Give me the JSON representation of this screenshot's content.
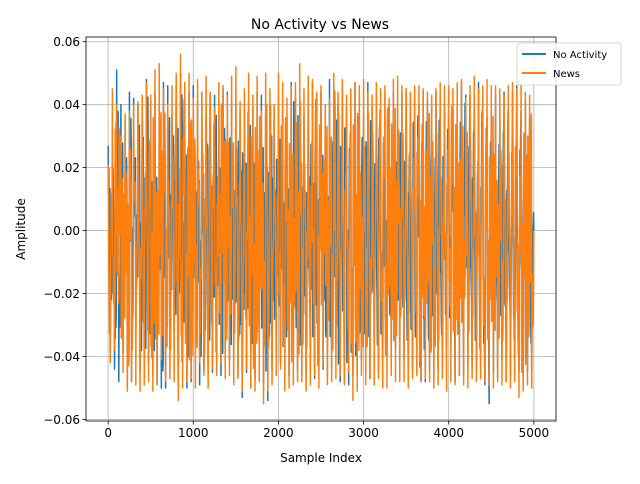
{
  "chart_data": {
    "type": "line",
    "title": "No Activity vs News",
    "xlabel": "Sample Index",
    "ylabel": "Amplitude",
    "xlim": [
      -260,
      5260
    ],
    "ylim": [
      -0.0605,
      0.0615
    ],
    "x_ticks": [
      0,
      1000,
      2000,
      3000,
      4000,
      5000
    ],
    "x_tick_labels": [
      "0",
      "1000",
      "2000",
      "3000",
      "4000",
      "5000"
    ],
    "y_ticks": [
      -0.06,
      -0.04,
      -0.02,
      0.0,
      0.02,
      0.04,
      0.06
    ],
    "y_tick_labels": [
      "−0.06",
      "−0.04",
      "−0.02",
      "0.00",
      "0.02",
      "0.04",
      "0.06"
    ],
    "grid": true,
    "legend_position": "top-right",
    "n_samples": 5000,
    "series": [
      {
        "name": "No Activity",
        "color": "#1f77b4",
        "x_start": 0,
        "x_step": 50,
        "envelope": [
          [
            0.027,
            -0.036
          ],
          [
            0.028,
            -0.044
          ],
          [
            0.051,
            -0.048
          ],
          [
            0.04,
            -0.039
          ],
          [
            0.035,
            -0.05
          ],
          [
            0.044,
            -0.048
          ],
          [
            0.042,
            -0.032
          ],
          [
            0.04,
            -0.045
          ],
          [
            0.036,
            -0.047
          ],
          [
            0.048,
            -0.042
          ],
          [
            0.041,
            -0.046
          ],
          [
            0.044,
            -0.049
          ],
          [
            0.038,
            -0.05
          ],
          [
            0.047,
            -0.05
          ],
          [
            0.046,
            -0.035
          ],
          [
            0.037,
            -0.032
          ],
          [
            0.048,
            -0.043
          ],
          [
            0.05,
            -0.039
          ],
          [
            0.029,
            -0.05
          ],
          [
            0.044,
            -0.048
          ],
          [
            0.046,
            -0.035
          ],
          [
            0.041,
            -0.049
          ],
          [
            0.044,
            -0.044
          ],
          [
            0.037,
            -0.044
          ],
          [
            0.04,
            -0.045
          ],
          [
            0.043,
            -0.036
          ],
          [
            0.037,
            -0.046
          ],
          [
            0.045,
            -0.038
          ],
          [
            0.044,
            -0.041
          ],
          [
            0.041,
            -0.047
          ],
          [
            0.041,
            -0.046
          ],
          [
            0.037,
            -0.053
          ],
          [
            0.04,
            -0.045
          ],
          [
            0.041,
            -0.049
          ],
          [
            0.039,
            -0.047
          ],
          [
            0.044,
            -0.04
          ],
          [
            0.043,
            -0.049
          ],
          [
            0.037,
            -0.054
          ],
          [
            0.04,
            -0.044
          ],
          [
            0.039,
            -0.046
          ],
          [
            0.043,
            -0.042
          ],
          [
            0.041,
            -0.046
          ],
          [
            0.036,
            -0.046
          ],
          [
            0.047,
            -0.041
          ],
          [
            0.042,
            -0.045
          ],
          [
            0.031,
            -0.046
          ],
          [
            0.036,
            -0.047
          ],
          [
            0.042,
            -0.039
          ],
          [
            0.047,
            -0.047
          ],
          [
            0.04,
            -0.042
          ],
          [
            0.044,
            -0.044
          ],
          [
            0.04,
            -0.046
          ],
          [
            0.048,
            -0.044
          ],
          [
            0.044,
            -0.036
          ],
          [
            0.04,
            -0.048
          ],
          [
            0.044,
            -0.048
          ],
          [
            0.039,
            -0.049
          ],
          [
            0.041,
            -0.046
          ],
          [
            0.047,
            -0.046
          ],
          [
            0.042,
            -0.041
          ],
          [
            0.036,
            -0.04
          ],
          [
            0.047,
            -0.047
          ],
          [
            0.039,
            -0.035
          ],
          [
            0.042,
            -0.044
          ],
          [
            0.038,
            -0.046
          ],
          [
            0.043,
            -0.04
          ],
          [
            0.04,
            -0.042
          ],
          [
            0.044,
            -0.037
          ],
          [
            0.039,
            -0.047
          ],
          [
            0.044,
            -0.041
          ],
          [
            0.045,
            -0.047
          ],
          [
            0.042,
            -0.044
          ],
          [
            0.043,
            -0.045
          ],
          [
            0.04,
            -0.048
          ],
          [
            0.044,
            -0.048
          ],
          [
            0.041,
            -0.044
          ],
          [
            0.04,
            -0.048
          ],
          [
            0.044,
            -0.044
          ],
          [
            0.039,
            -0.043
          ],
          [
            0.04,
            -0.037
          ],
          [
            0.043,
            -0.038
          ],
          [
            0.038,
            -0.048
          ],
          [
            0.041,
            -0.046
          ],
          [
            0.047,
            -0.046
          ],
          [
            0.043,
            -0.043
          ],
          [
            0.043,
            -0.044
          ],
          [
            0.039,
            -0.044
          ],
          [
            0.047,
            -0.043
          ],
          [
            0.041,
            -0.049
          ],
          [
            0.036,
            -0.055
          ],
          [
            0.04,
            -0.045
          ],
          [
            0.043,
            -0.047
          ],
          [
            0.04,
            -0.041
          ],
          [
            0.044,
            -0.048
          ],
          [
            0.037,
            -0.046
          ],
          [
            0.044,
            -0.046
          ],
          [
            0.046,
            -0.045
          ],
          [
            0.038,
            -0.049
          ],
          [
            0.042,
            -0.045
          ],
          [
            0.036,
            -0.049
          ]
        ]
      },
      {
        "name": "News",
        "color": "#ff7f0e",
        "x_start": 0,
        "x_step": 50,
        "envelope": [
          [
            0.021,
            -0.042
          ],
          [
            0.045,
            -0.038
          ],
          [
            0.04,
            -0.023
          ],
          [
            0.03,
            -0.045
          ],
          [
            0.037,
            -0.051
          ],
          [
            0.038,
            -0.048
          ],
          [
            0.04,
            -0.049
          ],
          [
            0.041,
            -0.051
          ],
          [
            0.043,
            -0.049
          ],
          [
            0.047,
            -0.048
          ],
          [
            0.043,
            -0.051
          ],
          [
            0.051,
            -0.049
          ],
          [
            0.053,
            -0.041
          ],
          [
            0.045,
            -0.048
          ],
          [
            0.04,
            -0.047
          ],
          [
            0.046,
            -0.048
          ],
          [
            0.05,
            -0.054
          ],
          [
            0.056,
            -0.05
          ],
          [
            0.047,
            -0.048
          ],
          [
            0.05,
            -0.047
          ],
          [
            0.042,
            -0.05
          ],
          [
            0.048,
            -0.042
          ],
          [
            0.044,
            -0.046
          ],
          [
            0.049,
            -0.05
          ],
          [
            0.044,
            -0.044
          ],
          [
            0.039,
            -0.046
          ],
          [
            0.047,
            -0.042
          ],
          [
            0.046,
            -0.047
          ],
          [
            0.043,
            -0.046
          ],
          [
            0.049,
            -0.049
          ],
          [
            0.052,
            -0.047
          ],
          [
            0.041,
            -0.051
          ],
          [
            0.045,
            -0.044
          ],
          [
            0.05,
            -0.05
          ],
          [
            0.043,
            -0.051
          ],
          [
            0.049,
            -0.048
          ],
          [
            0.038,
            -0.055
          ],
          [
            0.05,
            -0.051
          ],
          [
            0.045,
            -0.049
          ],
          [
            0.04,
            -0.046
          ],
          [
            0.05,
            -0.044
          ],
          [
            0.047,
            -0.051
          ],
          [
            0.042,
            -0.05
          ],
          [
            0.046,
            -0.049
          ],
          [
            0.047,
            -0.048
          ],
          [
            0.053,
            -0.048
          ],
          [
            0.045,
            -0.051
          ],
          [
            0.049,
            -0.049
          ],
          [
            0.048,
            -0.046
          ],
          [
            0.044,
            -0.05
          ],
          [
            0.046,
            -0.043
          ],
          [
            0.04,
            -0.049
          ],
          [
            0.042,
            -0.048
          ],
          [
            0.05,
            -0.047
          ],
          [
            0.044,
            -0.046
          ],
          [
            0.048,
            -0.049
          ],
          [
            0.043,
            -0.045
          ],
          [
            0.045,
            -0.054
          ],
          [
            0.047,
            -0.051
          ],
          [
            0.046,
            -0.046
          ],
          [
            0.048,
            -0.049
          ],
          [
            0.044,
            -0.047
          ],
          [
            0.043,
            -0.049
          ],
          [
            0.047,
            -0.047
          ],
          [
            0.045,
            -0.05
          ],
          [
            0.046,
            -0.05
          ],
          [
            0.042,
            -0.046
          ],
          [
            0.048,
            -0.048
          ],
          [
            0.049,
            -0.048
          ],
          [
            0.046,
            -0.048
          ],
          [
            0.045,
            -0.05
          ],
          [
            0.044,
            -0.047
          ],
          [
            0.046,
            -0.046
          ],
          [
            0.046,
            -0.048
          ],
          [
            0.045,
            -0.047
          ],
          [
            0.044,
            -0.048
          ],
          [
            0.043,
            -0.05
          ],
          [
            0.045,
            -0.049
          ],
          [
            0.047,
            -0.047
          ],
          [
            0.046,
            -0.051
          ],
          [
            0.046,
            -0.048
          ],
          [
            0.045,
            -0.049
          ],
          [
            0.047,
            -0.046
          ],
          [
            0.048,
            -0.049
          ],
          [
            0.042,
            -0.05
          ],
          [
            0.046,
            -0.047
          ],
          [
            0.049,
            -0.048
          ],
          [
            0.045,
            -0.047
          ],
          [
            0.046,
            -0.048
          ],
          [
            0.048,
            -0.049
          ],
          [
            0.046,
            -0.05
          ],
          [
            0.046,
            -0.048
          ],
          [
            0.045,
            -0.049
          ],
          [
            0.043,
            -0.048
          ],
          [
            0.046,
            -0.05
          ],
          [
            0.047,
            -0.048
          ],
          [
            0.045,
            -0.053
          ],
          [
            0.047,
            -0.051
          ],
          [
            0.044,
            -0.049
          ],
          [
            0.043,
            -0.05
          ]
        ]
      }
    ]
  }
}
